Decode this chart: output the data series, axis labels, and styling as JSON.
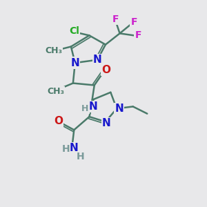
{
  "bg_color": "#e8e8ea",
  "bond_color": "#4a7a6a",
  "bond_width": 1.8,
  "atom_colors": {
    "N": "#1818cc",
    "O": "#cc1818",
    "Cl": "#22aa22",
    "F": "#cc22cc",
    "C": "#4a7a6a",
    "H": "#7a9a9a"
  },
  "font_size_atom": 11,
  "font_size_small": 9
}
